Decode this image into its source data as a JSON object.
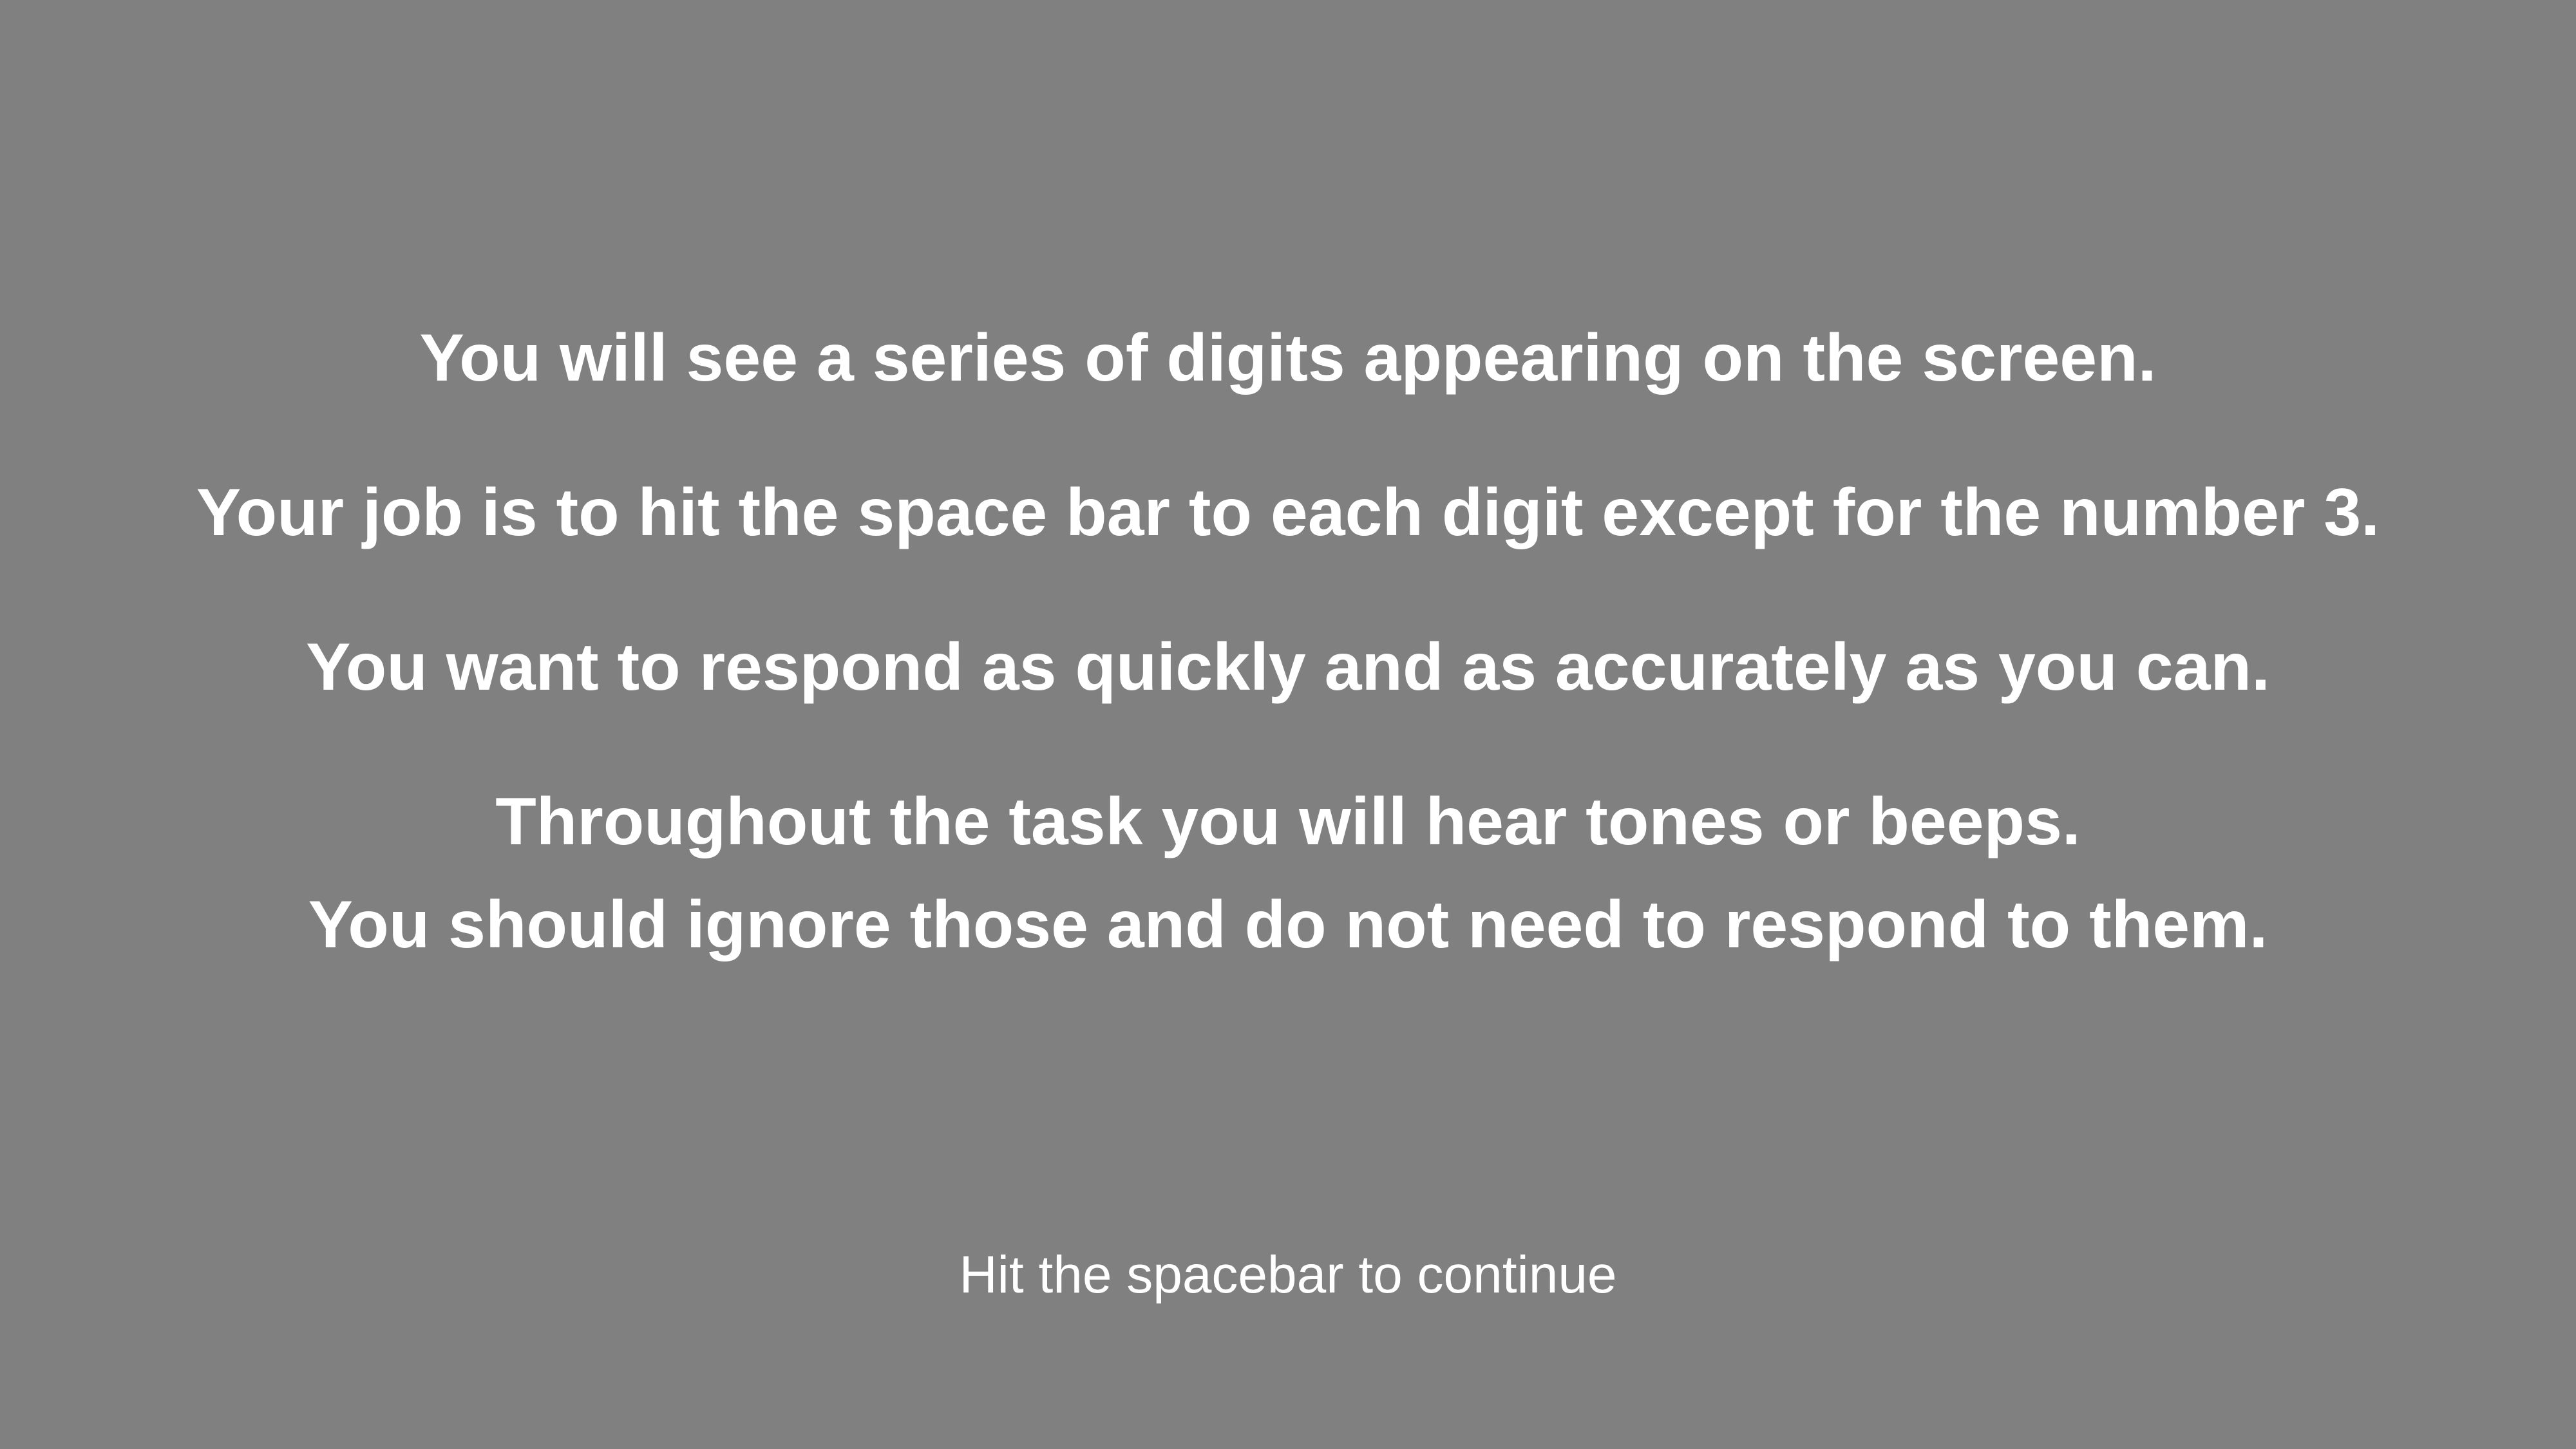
{
  "screen": {
    "background_color": "#808080",
    "text_color": "#ffffff",
    "instructions": [
      "You will see a series of digits appearing on the screen.",
      "Your job is to hit the space bar to each digit except for the number 3.",
      "You want to respond as quickly and as accurately as you can.",
      "Throughout the task you will hear tones or beeps.",
      "You should ignore those and do not need to respond to them."
    ],
    "continue_prompt": "Hit the spacebar to continue"
  }
}
